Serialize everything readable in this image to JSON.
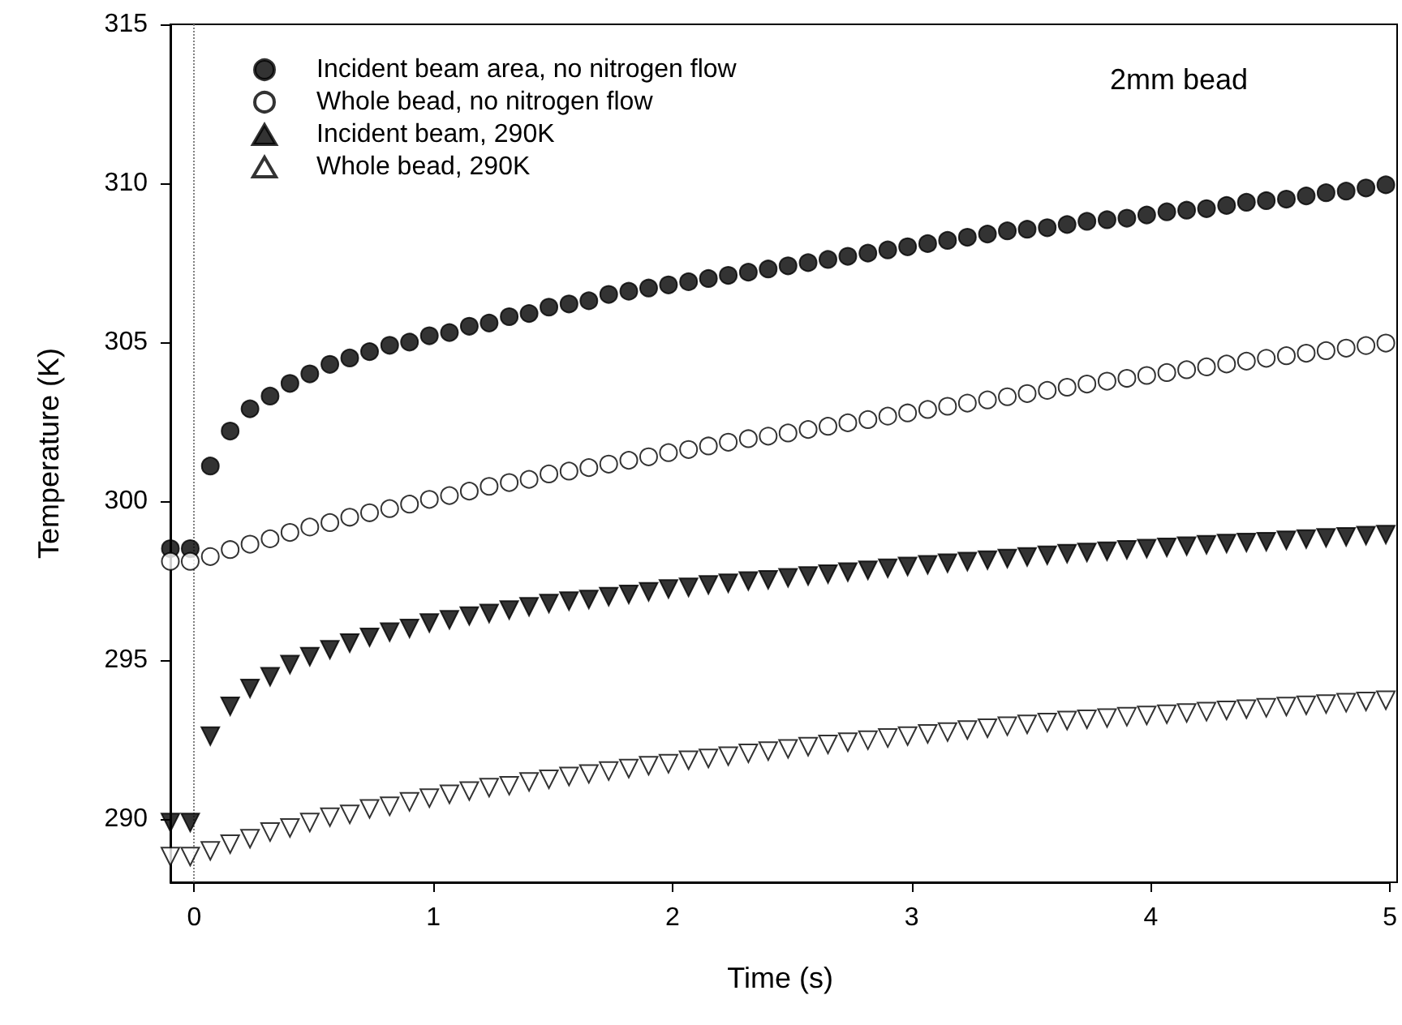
{
  "chart_data": {
    "type": "scatter",
    "xlabel": "Time (s)",
    "ylabel": "Temperature (K)",
    "annotations": [
      "2mm bead"
    ],
    "x": [
      -0.1,
      -0.017,
      0.067,
      0.15,
      0.233,
      0.317,
      0.4,
      0.483,
      0.567,
      0.65,
      0.733,
      0.817,
      0.9,
      0.983,
      1.067,
      1.15,
      1.233,
      1.317,
      1.4,
      1.483,
      1.567,
      1.65,
      1.733,
      1.817,
      1.9,
      1.983,
      2.067,
      2.15,
      2.233,
      2.317,
      2.4,
      2.483,
      2.567,
      2.65,
      2.733,
      2.817,
      2.9,
      2.983,
      3.067,
      3.15,
      3.233,
      3.317,
      3.4,
      3.483,
      3.567,
      3.65,
      3.733,
      3.817,
      3.9,
      3.983,
      4.067,
      4.15,
      4.233,
      4.317,
      4.4,
      4.483,
      4.567,
      4.65,
      4.733,
      4.817,
      4.9,
      4.983
    ],
    "series": [
      {
        "name": "Incident beam area, no nitrogen flow",
        "color": "#000000",
        "marker": "circle",
        "values": [
          298.5,
          298.5,
          301.1,
          302.2,
          302.9,
          303.3,
          303.7,
          304.0,
          304.3,
          304.5,
          304.7,
          304.9,
          305.0,
          305.2,
          305.3,
          305.5,
          305.6,
          305.8,
          305.9,
          306.1,
          306.2,
          306.3,
          306.5,
          306.6,
          306.7,
          306.8,
          306.9,
          307.0,
          307.1,
          307.2,
          307.3,
          307.4,
          307.5,
          307.6,
          307.7,
          307.8,
          307.9,
          308.0,
          308.1,
          308.2,
          308.3,
          308.4,
          308.5,
          308.55,
          308.6,
          308.7,
          308.8,
          308.85,
          308.9,
          309.0,
          309.1,
          309.15,
          309.2,
          309.3,
          309.4,
          309.45,
          309.5,
          309.6,
          309.7,
          309.75,
          309.85,
          309.95
        ]
      },
      {
        "name": "Whole bead, no nitrogen flow",
        "color": "#ffffff",
        "marker": "circle",
        "values": [
          298.1,
          298.1,
          298.25,
          298.47,
          298.64,
          298.81,
          299.01,
          299.18,
          299.32,
          299.49,
          299.63,
          299.76,
          299.9,
          300.05,
          300.17,
          300.31,
          300.46,
          300.58,
          300.68,
          300.85,
          300.94,
          301.05,
          301.16,
          301.28,
          301.39,
          301.52,
          301.62,
          301.73,
          301.85,
          301.96,
          302.04,
          302.14,
          302.25,
          302.35,
          302.46,
          302.56,
          302.67,
          302.77,
          302.88,
          302.98,
          303.08,
          303.18,
          303.28,
          303.38,
          303.48,
          303.58,
          303.68,
          303.77,
          303.86,
          303.95,
          304.04,
          304.13,
          304.22,
          304.31,
          304.4,
          304.49,
          304.57,
          304.65,
          304.73,
          304.81,
          304.89,
          304.97
        ]
      },
      {
        "name": "Incident beam, 290K",
        "color": "#000000",
        "marker": "triangle",
        "values": [
          289.88,
          289.88,
          292.6,
          293.54,
          294.1,
          294.47,
          294.85,
          295.1,
          295.32,
          295.53,
          295.71,
          295.87,
          295.99,
          296.16,
          296.26,
          296.38,
          296.46,
          296.57,
          296.67,
          296.77,
          296.85,
          296.9,
          296.99,
          297.06,
          297.14,
          297.23,
          297.28,
          297.36,
          297.41,
          297.48,
          297.52,
          297.58,
          297.64,
          297.7,
          297.76,
          297.82,
          297.88,
          297.94,
          297.99,
          298.04,
          298.09,
          298.14,
          298.19,
          298.24,
          298.29,
          298.34,
          298.38,
          298.42,
          298.46,
          298.5,
          298.54,
          298.58,
          298.62,
          298.66,
          298.69,
          298.72,
          298.76,
          298.8,
          298.84,
          298.87,
          298.91,
          298.94
        ]
      },
      {
        "name": "Whole bead, 290K",
        "color": "#ffffff",
        "marker": "triangle",
        "values": [
          288.81,
          288.81,
          288.99,
          289.2,
          289.37,
          289.58,
          289.71,
          289.88,
          290.05,
          290.14,
          290.31,
          290.39,
          290.53,
          290.65,
          290.77,
          290.87,
          290.98,
          291.04,
          291.16,
          291.24,
          291.33,
          291.41,
          291.5,
          291.58,
          291.67,
          291.73,
          291.84,
          291.9,
          291.97,
          292.06,
          292.13,
          292.2,
          292.27,
          292.34,
          292.41,
          292.47,
          292.54,
          292.6,
          292.67,
          292.73,
          292.79,
          292.85,
          292.91,
          292.97,
          293.03,
          293.09,
          293.13,
          293.17,
          293.21,
          293.25,
          293.29,
          293.33,
          293.37,
          293.41,
          293.45,
          293.49,
          293.53,
          293.57,
          293.61,
          293.65,
          293.69,
          293.73
        ]
      }
    ],
    "xlim": [
      -0.1,
      5
    ],
    "xticks": [
      0,
      1,
      2,
      3,
      4,
      5
    ],
    "ylim": [
      288,
      315
    ],
    "yticks": [
      290,
      295,
      300,
      305,
      310,
      315
    ],
    "ref_lines": [
      {
        "axis": "x",
        "value": 0,
        "color": "#808080",
        "line_style": "dotted"
      }
    ],
    "grid": false,
    "legend": "top left"
  }
}
